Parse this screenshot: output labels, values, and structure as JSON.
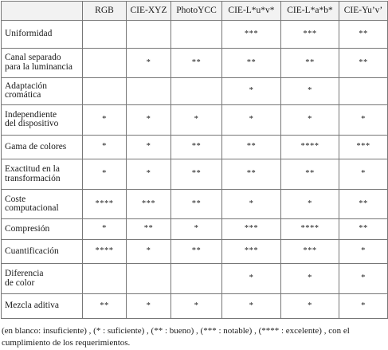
{
  "table": {
    "headers": [
      "",
      "RGB",
      "CIE-XYZ",
      "PhotoYCC",
      "CIE-L*u*v*",
      "CIE-L*a*b*",
      "CIE-Yu’v’"
    ],
    "rows": [
      {
        "label_lines": [
          "Uniformidad"
        ],
        "values": [
          "",
          "",
          "",
          "***",
          "***",
          "**"
        ]
      },
      {
        "label_lines": [
          "Canal separado",
          "para la luminancia"
        ],
        "values": [
          "",
          "*",
          "**",
          "**",
          "**",
          "**"
        ]
      },
      {
        "label_lines": [
          "Adaptación",
          "cromática"
        ],
        "values": [
          "",
          "",
          "",
          "*",
          "*",
          ""
        ]
      },
      {
        "label_lines": [
          "Independiente",
          "del dispositivo"
        ],
        "values": [
          "*",
          "*",
          "*",
          "*",
          "*",
          "*"
        ]
      },
      {
        "label_lines": [
          "Gama de colores"
        ],
        "values": [
          "*",
          "*",
          "**",
          "**",
          "****",
          "***"
        ]
      },
      {
        "label_lines": [
          "Exactitud en la",
          "transformación"
        ],
        "values": [
          "*",
          "*",
          "**",
          "**",
          "**",
          "*"
        ]
      },
      {
        "label_lines": [
          "Coste",
          "computacional"
        ],
        "values": [
          "****",
          "***",
          "**",
          "*",
          "*",
          "**"
        ]
      },
      {
        "label_lines": [
          "Compresión"
        ],
        "values": [
          "*",
          "**",
          "*",
          "***",
          "****",
          "**"
        ]
      },
      {
        "label_lines": [
          "Cuantificación"
        ],
        "values": [
          "****",
          "*",
          "**",
          "***",
          "***",
          "*"
        ]
      },
      {
        "label_lines": [
          "Diferencia",
          "de color"
        ],
        "values": [
          "",
          "",
          "",
          "*",
          "*",
          "*"
        ]
      },
      {
        "label_lines": [
          "Mezcla aditiva"
        ],
        "values": [
          "**",
          "*",
          "*",
          "*",
          "*",
          "*"
        ]
      }
    ]
  },
  "legend": {
    "line1": "(en blanco: insuficiente) , (* : suficiente) , (** : bueno) , (*** : notable) , (**** : excelente) , con el",
    "line2": "cumplimiento de los requerimientos."
  }
}
